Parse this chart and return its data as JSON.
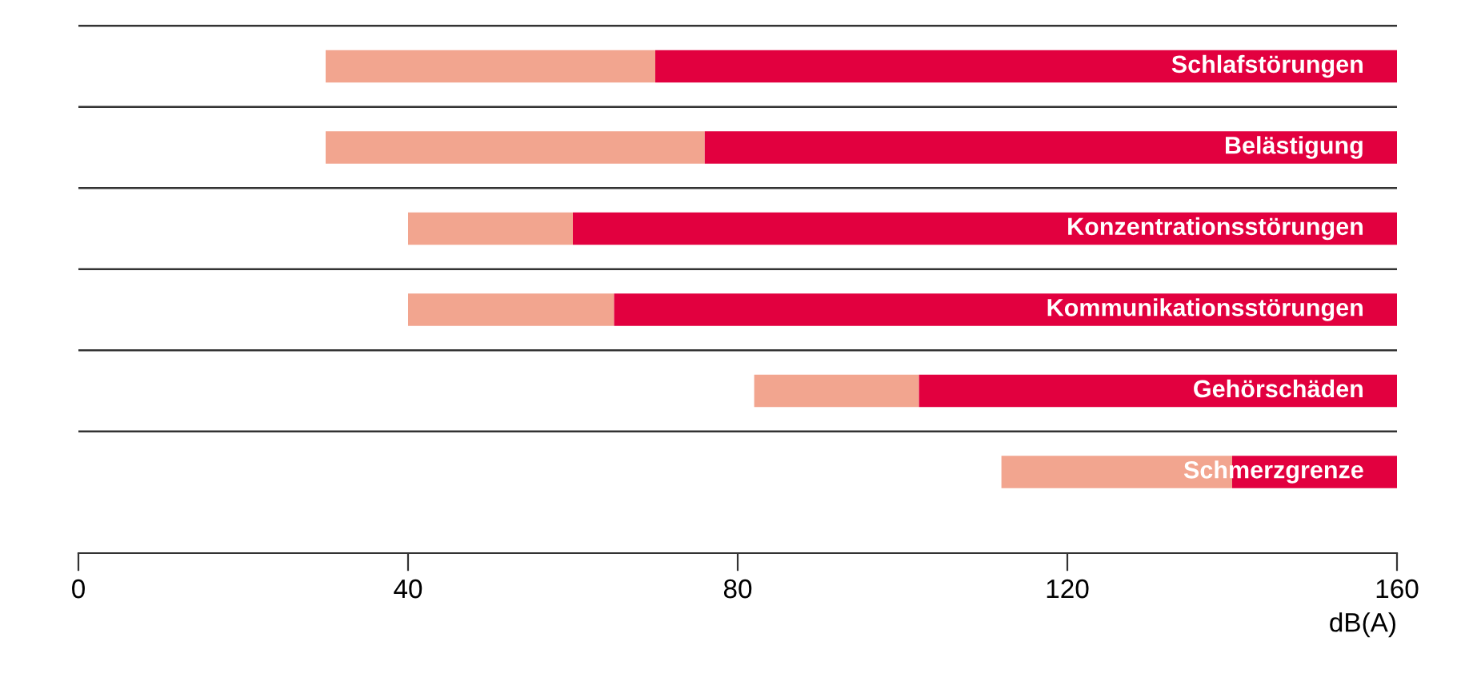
{
  "chart_data": {
    "type": "bar",
    "orientation": "horizontal",
    "xlabel": "dB(A)",
    "categories": [
      "Schlafstörungen",
      "Belästigung",
      "Konzentrationsstörungen",
      "Kommunikationsstörungen",
      "Gehörschäden",
      "Schmerzgrenze"
    ],
    "series": [
      {
        "color": "#f2a58f",
        "base": [
          30,
          30,
          40,
          40,
          82,
          112
        ],
        "values": [
          40,
          46,
          20,
          25,
          20,
          28
        ]
      },
      {
        "color": "#e2003f",
        "base": [
          70,
          76,
          60,
          65,
          102,
          140
        ],
        "values": [
          90,
          84,
          100,
          95,
          58,
          20
        ]
      }
    ],
    "xlim": [
      0,
      160
    ],
    "xticks": [
      0,
      40,
      80,
      120,
      160
    ],
    "grid": "y",
    "tick_labels": "x"
  }
}
